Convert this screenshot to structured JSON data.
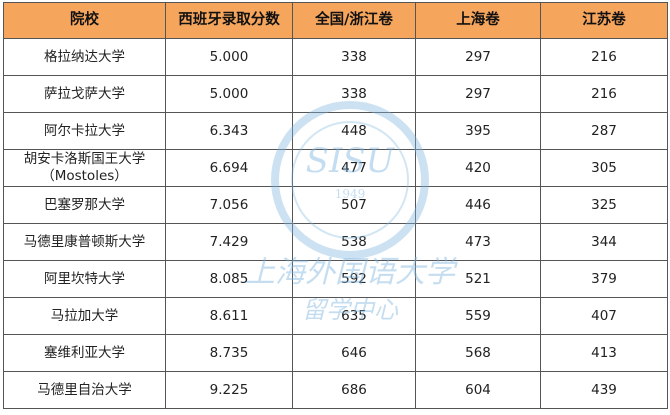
{
  "table": {
    "header": [
      "院校",
      "西班牙录取分数",
      "全国/浙江卷",
      "上海卷",
      "江苏卷"
    ],
    "rows": [
      [
        "格拉纳达大学",
        "5.000",
        "338",
        "297",
        "216"
      ],
      [
        "萨拉戈萨大学",
        "5.000",
        "338",
        "297",
        "216"
      ],
      [
        "阿尔卡拉大学",
        "6.343",
        "448",
        "395",
        "287"
      ],
      [
        "胡安卡洛斯国王大学\n（Mostoles）",
        "6.694",
        "477",
        "420",
        "305"
      ],
      [
        "巴塞罗那大学",
        "7.056",
        "507",
        "446",
        "325"
      ],
      [
        "马德里康普顿斯大学",
        "7.429",
        "538",
        "473",
        "344"
      ],
      [
        "阿里坎特大学",
        "8.085",
        "592",
        "521",
        "379"
      ],
      [
        "马拉加大学",
        "8.611",
        "635",
        "559",
        "407"
      ],
      [
        "塞维利亚大学",
        "8.735",
        "646",
        "568",
        "413"
      ],
      [
        "马德里自治大学",
        "9.225",
        "686",
        "604",
        "439"
      ]
    ]
  },
  "watermark": {
    "logo": "SISU",
    "year": "1949",
    "line1": "上海外国语大学",
    "line2": "留学中心"
  }
}
